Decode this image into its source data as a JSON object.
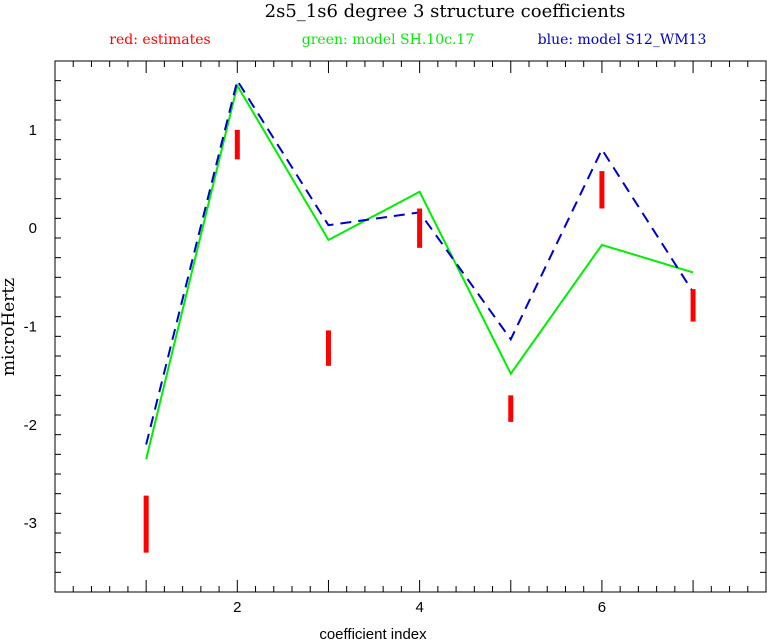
{
  "chart_data": {
    "type": "line",
    "title": "2s5_1s6 degree 3 structure coefficients",
    "xlabel": "coefficient index",
    "ylabel": "microHertz",
    "xlim": [
      0,
      7.8
    ],
    "ylim": [
      -3.7,
      1.7
    ],
    "xticks": [
      2,
      4,
      6
    ],
    "yticks": [
      1,
      0,
      -1,
      -2,
      -3
    ],
    "grid": false,
    "legend": [
      {
        "label": "red: estimates",
        "color": "#ff0000"
      },
      {
        "label": "green: model SH.10c.17",
        "color": "#00ee00"
      },
      {
        "label": "blue: model S12_WM13",
        "color": "#0000cc"
      }
    ],
    "estimates": {
      "name": "estimates",
      "color": "#ff0000",
      "x": [
        1,
        2,
        3,
        4,
        5,
        6,
        7
      ],
      "low": [
        -3.3,
        0.7,
        -1.4,
        -0.2,
        -1.97,
        0.2,
        -0.95
      ],
      "high": [
        -2.72,
        1.0,
        -1.04,
        0.2,
        -1.7,
        0.58,
        -0.62
      ]
    },
    "series": [
      {
        "name": "green: model SH.10c.17",
        "color": "#00ee00",
        "style": "solid",
        "x": [
          1,
          2,
          3,
          4,
          5,
          6,
          7
        ],
        "values": [
          -2.35,
          1.45,
          -0.12,
          0.37,
          -1.48,
          -0.17,
          -0.45
        ]
      },
      {
        "name": "blue: model S12_WM13",
        "color": "#0000cc",
        "style": "dashed",
        "x": [
          1,
          2,
          3,
          4,
          5,
          6,
          7
        ],
        "values": [
          -2.2,
          1.5,
          0.03,
          0.16,
          -1.13,
          0.8,
          -0.65
        ]
      }
    ]
  }
}
